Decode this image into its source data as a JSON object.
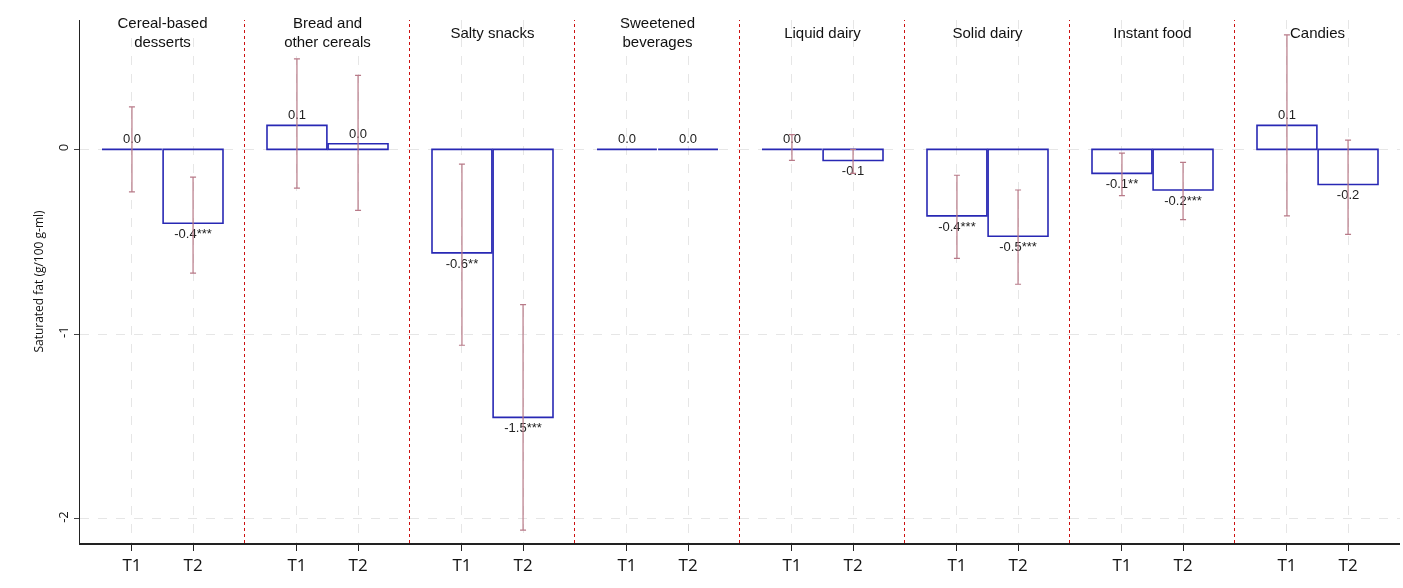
{
  "chart_data": [
    {
      "type": "bar",
      "title": "Cereal-based desserts",
      "ylabel": "Saturated fat (g/100 g-ml)",
      "categories": [
        "T1",
        "T2"
      ],
      "values": [
        0.0,
        -0.4
      ],
      "errors": [
        [
          -0.23,
          0.23
        ],
        [
          -0.67,
          -0.15
        ]
      ],
      "value_labels": [
        "0.0",
        "-0.4***"
      ],
      "color": "#2828b4",
      "ylim": [
        -2.13,
        0.7
      ],
      "yticks": [
        0,
        -1,
        -2
      ],
      "grid": true
    },
    {
      "type": "bar",
      "title": "Bread and other cereals",
      "categories": [
        "T1",
        "T2"
      ],
      "values": [
        0.13,
        0.03
      ],
      "errors": [
        [
          -0.21,
          0.49
        ],
        [
          -0.33,
          0.4
        ]
      ],
      "value_labels": [
        "0.1",
        "0.0"
      ],
      "color": "#2828b4",
      "ylim": [
        -2.13,
        0.7
      ],
      "yticks": [
        0,
        -1,
        -2
      ],
      "grid": true,
      "tick_labels": "x"
    },
    {
      "type": "bar",
      "title": "Salty snacks",
      "categories": [
        "T1",
        "T2"
      ],
      "values": [
        -0.56,
        -1.45
      ],
      "errors": [
        [
          -1.06,
          -0.08
        ],
        [
          -2.06,
          -0.84
        ]
      ],
      "value_labels": [
        "-0.6**",
        "-1.5***"
      ],
      "color": "#2828b4",
      "ylim": [
        -2.13,
        0.7
      ],
      "yticks": [
        0,
        -1,
        -2
      ],
      "grid": true,
      "tick_labels": "x"
    },
    {
      "type": "bar",
      "title": "Sweetened beverages",
      "categories": [
        "T1",
        "T2"
      ],
      "values": [
        0.0,
        0.0
      ],
      "value_labels": [
        "0.0",
        "0.0"
      ],
      "color": "#2828b4",
      "ylim": [
        -2.13,
        0.7
      ],
      "yticks": [
        0,
        -1,
        -2
      ],
      "grid": true,
      "tick_labels": "x"
    },
    {
      "type": "bar",
      "title": "Liquid dairy",
      "categories": [
        "T1",
        "T2"
      ],
      "values": [
        0.0,
        -0.06
      ],
      "errors": [
        [
          -0.06,
          0.08
        ],
        [
          -0.13,
          0.0
        ]
      ],
      "value_labels": [
        "0.0",
        "-0.1"
      ],
      "color": "#2828b4",
      "ylim": [
        -2.13,
        0.7
      ],
      "yticks": [
        0,
        -1,
        -2
      ],
      "grid": true,
      "tick_labels": "x"
    },
    {
      "type": "bar",
      "title": "Solid dairy",
      "categories": [
        "T1",
        "T2"
      ],
      "values": [
        -0.36,
        -0.47
      ],
      "errors": [
        [
          -0.59,
          -0.14
        ],
        [
          -0.73,
          -0.22
        ]
      ],
      "value_labels": [
        "-0.4***",
        "-0.5***"
      ],
      "color": "#2828b4",
      "ylim": [
        -2.13,
        0.7
      ],
      "yticks": [
        0,
        -1,
        -2
      ],
      "grid": true,
      "tick_labels": "x"
    },
    {
      "type": "bar",
      "title": "Instant food",
      "categories": [
        "T1",
        "T2"
      ],
      "values": [
        -0.13,
        -0.22
      ],
      "errors": [
        [
          -0.25,
          -0.02
        ],
        [
          -0.38,
          -0.07
        ]
      ],
      "value_labels": [
        "-0.1**",
        "-0.2***"
      ],
      "color": "#2828b4",
      "ylim": [
        -2.13,
        0.7
      ],
      "yticks": [
        0,
        -1,
        -2
      ],
      "grid": true,
      "tick_labels": "x"
    },
    {
      "type": "bar",
      "title": "Candies",
      "categories": [
        "T1",
        "T2"
      ],
      "values": [
        0.13,
        -0.19
      ],
      "errors": [
        [
          -0.36,
          0.62
        ],
        [
          -0.46,
          0.05
        ]
      ],
      "value_labels": [
        "0.1",
        "-0.2"
      ],
      "color": "#2828b4",
      "ylim": [
        -2.13,
        0.7
      ],
      "yticks": [
        0,
        -1,
        -2
      ],
      "grid": true,
      "tick_labels": "x"
    }
  ]
}
